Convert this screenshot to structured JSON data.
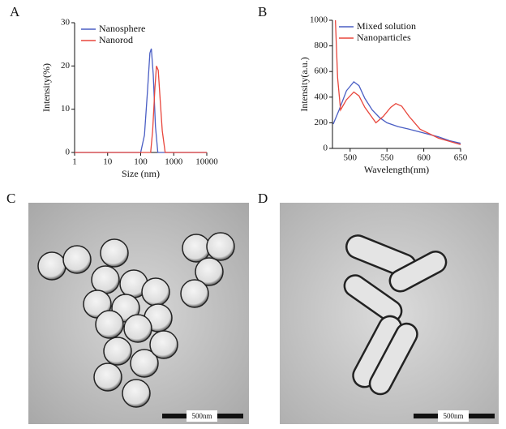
{
  "figure": {
    "panel_labels": [
      "A",
      "B",
      "C",
      "D"
    ],
    "scale_bars": [
      "500nm",
      "500nm"
    ]
  },
  "chart_data": [
    {
      "type": "line",
      "xscale": "log",
      "x_label": "Size (nm)",
      "y_label": "Intensity(%)",
      "xlim": [
        1,
        10000
      ],
      "xticks": [
        1,
        10,
        100,
        1000,
        10000
      ],
      "ylim": [
        0,
        30
      ],
      "yticks": [
        0,
        10,
        20,
        30
      ],
      "legend": "upper left",
      "series": [
        {
          "name": "Nanosphere",
          "color": "#4a5ec4",
          "x": [
            1,
            10,
            100,
            130,
            160,
            190,
            210,
            240,
            280,
            330,
            10000
          ],
          "values": [
            0,
            0,
            0,
            4,
            14,
            23,
            24,
            18,
            6,
            0,
            0
          ]
        },
        {
          "name": "Nanorod",
          "color": "#e8463c",
          "x": [
            1,
            10,
            100,
            200,
            230,
            270,
            300,
            340,
            390,
            450,
            550,
            10000
          ],
          "values": [
            0,
            0,
            0,
            0,
            5,
            15,
            20,
            19,
            12,
            5,
            0,
            0
          ]
        }
      ]
    },
    {
      "type": "line",
      "x_label": "Wavelength(nm)",
      "y_label": "Intensity(a.u.)",
      "xlim": [
        476,
        650
      ],
      "xticks": [
        500,
        550,
        600,
        650
      ],
      "ylim": [
        0,
        1000
      ],
      "yticks": [
        0,
        200,
        400,
        600,
        800,
        1000
      ],
      "legend": "upper left",
      "series": [
        {
          "name": "Mixed solution",
          "color": "#4a5ec4",
          "x": [
            477,
            485,
            495,
            505,
            512,
            520,
            530,
            540,
            550,
            565,
            580,
            600,
            620,
            635,
            650
          ],
          "values": [
            190,
            300,
            450,
            520,
            490,
            390,
            300,
            240,
            200,
            170,
            150,
            120,
            90,
            60,
            40
          ]
        },
        {
          "name": "Nanoparticles",
          "color": "#e8463c",
          "x": [
            480,
            483,
            487,
            495,
            505,
            512,
            520,
            535,
            545,
            555,
            562,
            570,
            580,
            595,
            620,
            650
          ],
          "values": [
            1000,
            550,
            300,
            380,
            440,
            410,
            320,
            200,
            250,
            320,
            350,
            330,
            250,
            150,
            80,
            30
          ]
        }
      ]
    }
  ]
}
